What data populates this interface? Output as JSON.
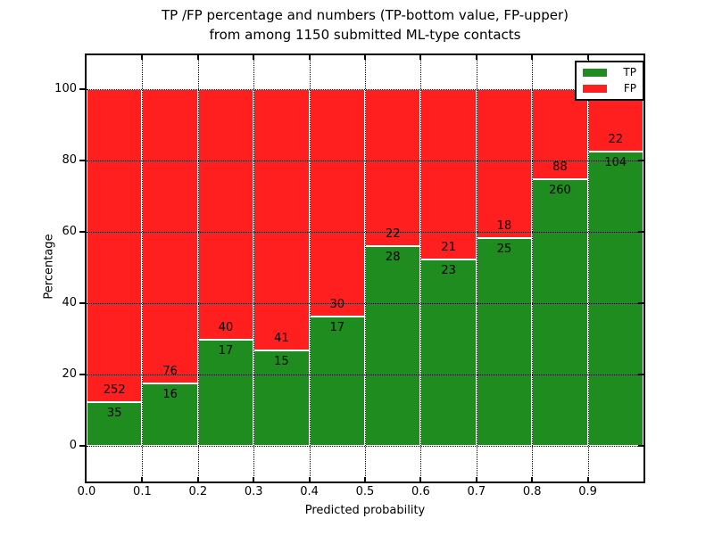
{
  "title": {
    "line1": "TP /FP percentage and numbers (TP-bottom value, FP-upper)",
    "line2": "from among 1150 submitted ML-type contacts"
  },
  "axes": {
    "xlabel": "Predicted probability",
    "ylabel": "Percentage",
    "yticks": [
      "0",
      "20",
      "40",
      "60",
      "80",
      "100"
    ],
    "ytick_values": [
      0,
      20,
      40,
      60,
      80,
      100
    ],
    "xticks": [
      "0.0",
      "0.1",
      "0.2",
      "0.3",
      "0.4",
      "0.5",
      "0.6",
      "0.7",
      "0.8",
      "0.9"
    ],
    "xtick_values": [
      0.0,
      0.1,
      0.2,
      0.3,
      0.4,
      0.5,
      0.6,
      0.7,
      0.8,
      0.9
    ],
    "grid_style": "dotted"
  },
  "legend": {
    "position": "upper right",
    "entries": [
      {
        "label": "TP",
        "color": "#1e8c1e"
      },
      {
        "label": "FP",
        "color": "#ff1f1f"
      }
    ]
  },
  "chart_data": {
    "type": "bar",
    "stacked": true,
    "normalized_to_percent": true,
    "title": "TP /FP percentage and numbers (TP-bottom value, FP-upper)\nfrom among 1150 submitted ML-type contacts",
    "xlabel": "Predicted probability",
    "ylabel": "Percentage",
    "total_contacts": 1150,
    "x_bins": [
      "0.0-0.1",
      "0.1-0.2",
      "0.2-0.3",
      "0.3-0.4",
      "0.4-0.5",
      "0.5-0.6",
      "0.6-0.7",
      "0.7-0.8",
      "0.8-0.9",
      "0.9-1.0"
    ],
    "bar_width_x": 0.1,
    "xlim": [
      0.0,
      1.0
    ],
    "ylim": [
      -10,
      109.5
    ],
    "grid": true,
    "legend_position": "upper right",
    "series": [
      {
        "name": "TP",
        "color": "#1e8c1e",
        "counts": [
          35,
          16,
          17,
          15,
          17,
          28,
          23,
          25,
          260,
          104
        ],
        "percent": [
          12.2,
          17.4,
          29.8,
          26.8,
          36.2,
          56.0,
          52.3,
          58.1,
          74.7,
          82.5
        ]
      },
      {
        "name": "FP",
        "color": "#ff1f1f",
        "counts": [
          252,
          76,
          40,
          41,
          30,
          22,
          21,
          18,
          88,
          22
        ],
        "percent": [
          87.8,
          82.6,
          70.2,
          73.2,
          63.8,
          44.0,
          47.7,
          41.9,
          25.3,
          17.5
        ]
      }
    ]
  }
}
